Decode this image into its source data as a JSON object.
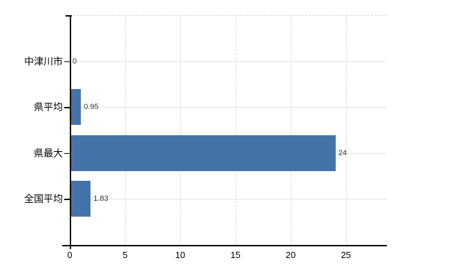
{
  "chart_data": {
    "type": "bar",
    "orientation": "horizontal",
    "categories": [
      "中津川市",
      "県平均",
      "県最大",
      "全国平均"
    ],
    "values": [
      0,
      0.95,
      24,
      1.83
    ],
    "value_labels": [
      "0",
      "0.95",
      "24",
      "1.83"
    ],
    "xticks": [
      "0",
      "5",
      "10",
      "15",
      "20",
      "25"
    ],
    "xtick_values": [
      0,
      5,
      10,
      15,
      20,
      25
    ],
    "xlim": [
      0,
      28.7
    ],
    "bar_color": "#4473aa",
    "grid": true,
    "legend": "none",
    "title": ""
  },
  "colors": {
    "background": "#ffffff",
    "bar": "#4473aa",
    "axis": "#000000",
    "horizontal_gridline": "#e1e4e1",
    "vertical_gridline": "#d7d7d7",
    "category_text": "#000000",
    "value_text": "#363636"
  }
}
